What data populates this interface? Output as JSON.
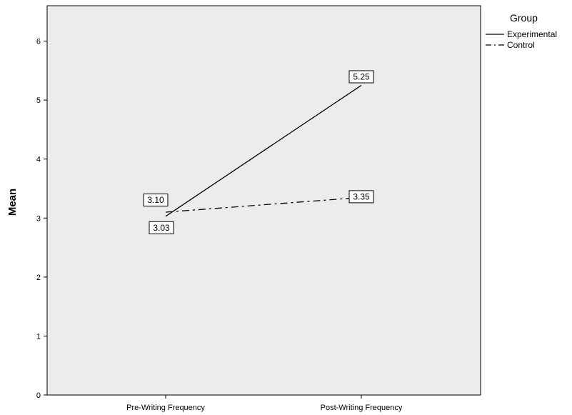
{
  "chart_data": {
    "type": "line",
    "categories": [
      "Pre-Writing Frequency",
      "Post-Writing Frequency"
    ],
    "series": [
      {
        "name": "Experimental",
        "values": [
          3.03,
          5.25
        ],
        "line_style": "solid",
        "labels": [
          "3.03",
          "5.25"
        ]
      },
      {
        "name": "Control",
        "values": [
          3.1,
          3.35
        ],
        "line_style": "dash-dot",
        "labels": [
          "3.10",
          "3.35"
        ]
      }
    ],
    "ylabel": "Mean",
    "xlabel": "",
    "ylim": [
      0,
      6.6
    ],
    "yticks": [
      0,
      1,
      2,
      3,
      4,
      5,
      6
    ],
    "ytick_labels": [
      "0",
      "1",
      "2",
      "3",
      "4",
      "5",
      "6"
    ],
    "legend_title": "Group",
    "legend_position": "top-right",
    "grid": false,
    "plot_background": "#ececec",
    "line_color": "#000000"
  }
}
